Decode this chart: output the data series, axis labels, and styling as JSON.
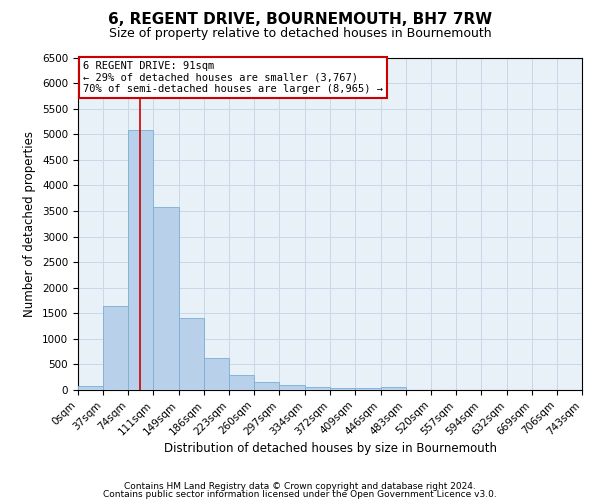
{
  "title": "6, REGENT DRIVE, BOURNEMOUTH, BH7 7RW",
  "subtitle": "Size of property relative to detached houses in Bournemouth",
  "xlabel": "Distribution of detached houses by size in Bournemouth",
  "ylabel": "Number of detached properties",
  "footer_line1": "Contains HM Land Registry data © Crown copyright and database right 2024.",
  "footer_line2": "Contains public sector information licensed under the Open Government Licence v3.0.",
  "annotation_title": "6 REGENT DRIVE: 91sqm",
  "annotation_line1": "← 29% of detached houses are smaller (3,767)",
  "annotation_line2": "70% of semi-detached houses are larger (8,965) →",
  "property_size_sqm": 91,
  "bar_edges": [
    0,
    37,
    74,
    111,
    149,
    186,
    223,
    260,
    297,
    334,
    372,
    409,
    446,
    483,
    520,
    557,
    594,
    632,
    669,
    706,
    743
  ],
  "bar_values": [
    80,
    1650,
    5080,
    3580,
    1400,
    620,
    300,
    155,
    100,
    60,
    40,
    30,
    55,
    0,
    0,
    0,
    0,
    0,
    0,
    0
  ],
  "bar_color": "#b8d0ea",
  "bar_edgecolor": "#7aafd4",
  "red_line_color": "#cc0000",
  "annotation_box_color": "#cc0000",
  "grid_color": "#c8d8e8",
  "bg_color": "#e8f0f8",
  "ylim": [
    0,
    6500
  ],
  "yticks": [
    0,
    500,
    1000,
    1500,
    2000,
    2500,
    3000,
    3500,
    4000,
    4500,
    5000,
    5500,
    6000,
    6500
  ],
  "title_fontsize": 11,
  "subtitle_fontsize": 9,
  "xlabel_fontsize": 8.5,
  "ylabel_fontsize": 8.5,
  "tick_fontsize": 7.5,
  "annotation_fontsize": 7.5
}
